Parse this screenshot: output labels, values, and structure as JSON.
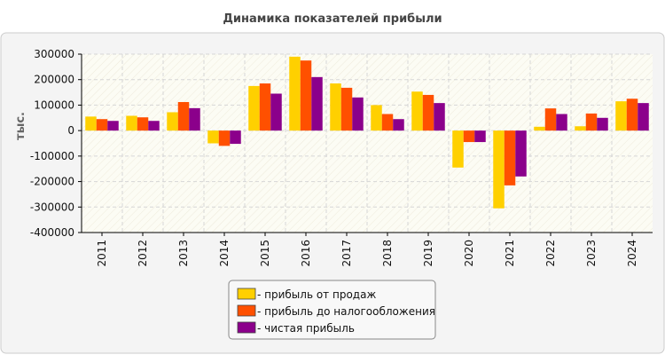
{
  "chart_data": {
    "type": "bar",
    "title": "Динамика показателей прибыли",
    "ylabel": "тыс.",
    "xlabel": "",
    "ylim": [
      -400000,
      300000
    ],
    "yticks": [
      300000,
      200000,
      100000,
      0,
      -100000,
      -200000,
      -300000,
      -400000
    ],
    "categories": [
      "2011",
      "2012",
      "2013",
      "2014",
      "2015",
      "2016",
      "2017",
      "2018",
      "2019",
      "2020",
      "2021",
      "2022",
      "2023",
      "2024"
    ],
    "series": [
      {
        "name": "- прибыль от продаж",
        "color": "#ffd000",
        "values": [
          55000,
          58000,
          72000,
          -50000,
          175000,
          290000,
          185000,
          100000,
          153000,
          -145000,
          -305000,
          15000,
          17000,
          115000
        ]
      },
      {
        "name": "- прибыль до налогообложения",
        "color": "#ff5000",
        "values": [
          45000,
          52000,
          112000,
          -60000,
          185000,
          275000,
          168000,
          65000,
          140000,
          -45000,
          -215000,
          87000,
          67000,
          125000
        ]
      },
      {
        "name": "- чистая прибыль",
        "color": "#8b008b",
        "values": [
          38000,
          38000,
          88000,
          -52000,
          145000,
          210000,
          130000,
          45000,
          108000,
          -45000,
          -180000,
          65000,
          50000,
          108000
        ]
      }
    ],
    "grid": true,
    "legend_position": "bottom"
  },
  "colors": {
    "outer_background": "#f4f4f4",
    "plot_background": "#fcfcf4",
    "axis": "#000000",
    "grid": "#d6d6d6"
  }
}
